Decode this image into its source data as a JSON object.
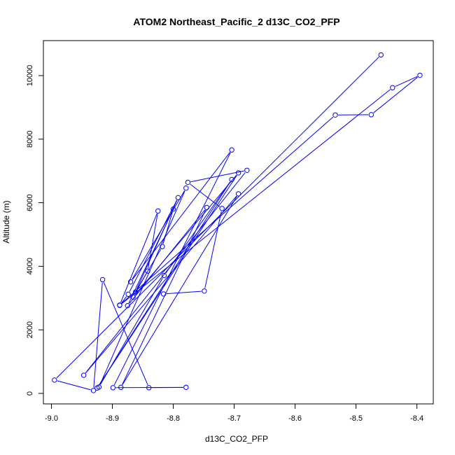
{
  "chart_data": {
    "type": "line",
    "title": "ATOM2 Northeast_Pacific_2 d13C_CO2_PFP",
    "xlabel": "d13C_CO2_PFP",
    "ylabel": "Altitude (m)",
    "xlim": [
      -9.0,
      -8.4
    ],
    "ylim": [
      0,
      10000
    ],
    "xticks": [
      "-9.0",
      "-8.9",
      "-8.8",
      "-8.7",
      "-8.6",
      "-8.5",
      "-8.4"
    ],
    "yticks": [
      "0",
      "2000",
      "4000",
      "6000",
      "8000",
      "10000"
    ],
    "grid": false,
    "series": [
      {
        "color": "#0000ff",
        "marker": "open-circle",
        "points": [
          [
            -8.459,
            10650
          ],
          [
            -8.995,
            420
          ],
          [
            -8.931,
            90
          ],
          [
            -8.916,
            3580
          ],
          [
            -8.84,
            180
          ],
          [
            -8.779,
            190
          ],
          [
            -8.899,
            180
          ],
          [
            -8.704,
            7660
          ],
          [
            -8.87,
            3510
          ],
          [
            -8.779,
            6460
          ],
          [
            -8.922,
            200
          ],
          [
            -8.815,
            3710
          ],
          [
            -8.704,
            6730
          ],
          [
            -8.925,
            170
          ],
          [
            -8.693,
            6940
          ],
          [
            -8.866,
            3030
          ],
          [
            -8.842,
            3850
          ],
          [
            -8.825,
            5740
          ],
          [
            -8.888,
            2780
          ],
          [
            -8.534,
            8760
          ],
          [
            -8.475,
            8770
          ],
          [
            -8.395,
            10010
          ],
          [
            -8.44,
            9620
          ],
          [
            -8.888,
            2770
          ],
          [
            -8.874,
            3120
          ],
          [
            -8.792,
            6160
          ],
          [
            -8.862,
            3190
          ],
          [
            -8.818,
            4620
          ],
          [
            -8.8,
            5800
          ],
          [
            -8.875,
            2760
          ],
          [
            -8.745,
            5850
          ],
          [
            -8.886,
            190
          ],
          [
            -8.693,
            6280
          ],
          [
            -8.947,
            570
          ],
          [
            -8.679,
            7020
          ],
          [
            -8.776,
            6640
          ],
          [
            -8.72,
            5820
          ],
          [
            -8.749,
            3220
          ],
          [
            -8.816,
            3130
          ]
        ]
      }
    ]
  }
}
